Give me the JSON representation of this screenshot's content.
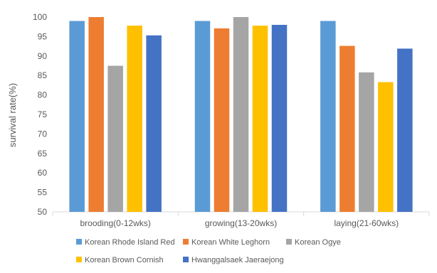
{
  "chart_data": {
    "type": "bar",
    "ylabel": "survival rate(%)",
    "ylim": [
      50,
      100
    ],
    "yticks": [
      50,
      55,
      60,
      65,
      70,
      75,
      80,
      85,
      90,
      95,
      100
    ],
    "grid": false,
    "legend_position": "bottom",
    "categories": [
      "brooding(0-12wks)",
      "growing(13-20wks)",
      "laying(21-60wks)"
    ],
    "series": [
      {
        "name": "Korean Rhode Island Red",
        "color": "#5B9BD5",
        "values": [
          99.0,
          99.0,
          99.0
        ]
      },
      {
        "name": "Korean White Leghorn",
        "color": "#ED7D31",
        "values": [
          100.0,
          97.1,
          92.6
        ]
      },
      {
        "name": "Korean Ogye",
        "color": "#A5A5A5",
        "values": [
          87.5,
          100.0,
          85.8
        ]
      },
      {
        "name": "Korean Brown Cornish",
        "color": "#FFC000",
        "values": [
          97.8,
          97.8,
          83.3
        ]
      },
      {
        "name": "Hwanggalsaek Jaeraejong",
        "color": "#4472C4",
        "values": [
          95.3,
          98.0,
          91.9
        ]
      }
    ]
  }
}
